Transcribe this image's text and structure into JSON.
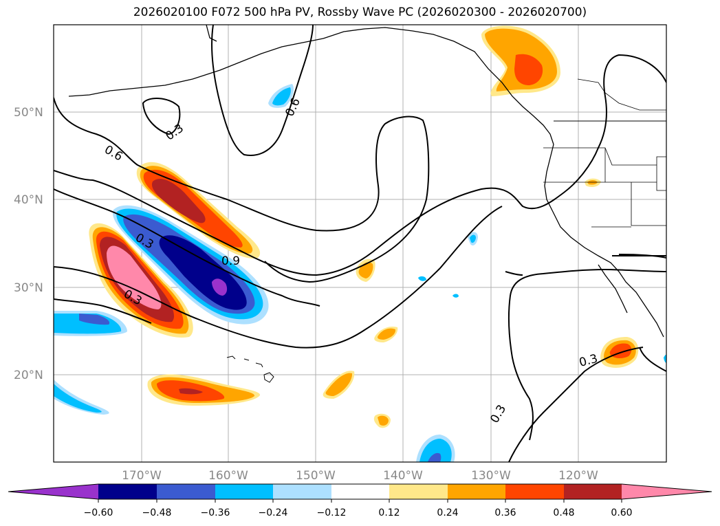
{
  "title": "2026020100 F072 500 hPa PV, Rossby Wave PC (2026020300 - 2026020700)",
  "map": {
    "lat_labels": [
      "50°N",
      "40°N",
      "30°N",
      "20°N"
    ],
    "lon_labels": [
      "170°W",
      "160°W",
      "150°W",
      "140°W",
      "130°W",
      "120°W"
    ],
    "contour_labels": [
      "0.3",
      "0.6",
      "0.6",
      "0.3",
      "0.9",
      "0.3",
      "0.3",
      "0.3"
    ]
  },
  "colorbar": {
    "ticks": [
      "−0.60",
      "−0.48",
      "−0.36",
      "−0.24",
      "−0.12",
      "0.12",
      "0.24",
      "0.36",
      "0.48",
      "0.60"
    ],
    "colors": [
      "#9932cc",
      "#00008b",
      "#3b5bd0",
      "#00bfff",
      "#ade0ff",
      "#ffffff",
      "#ffe88a",
      "#ffa500",
      "#ff4500",
      "#b22222",
      "#ff88aa"
    ]
  },
  "palette": {
    "orange_light": "#ffe88a",
    "orange": "#ffa500",
    "red_orange": "#ff4500",
    "dark_red": "#b22222",
    "pink": "#ff88aa",
    "light_blue": "#ade0ff",
    "sky_blue": "#00bfff",
    "royal_blue": "#3b5bd0",
    "navy": "#00008b",
    "purple": "#9932cc",
    "grid": "#b0b0b0"
  }
}
